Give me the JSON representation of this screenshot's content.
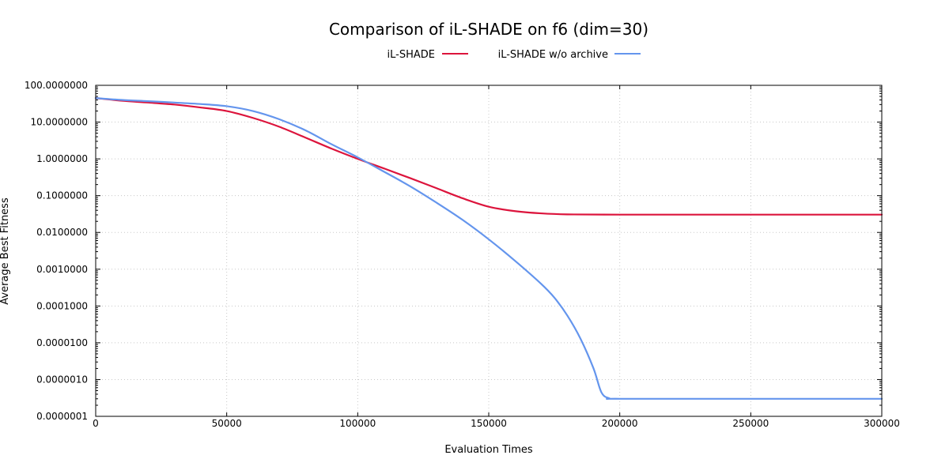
{
  "chart_data": {
    "type": "line",
    "title": "Comparison of iL-SHADE on f6 (dim=30)",
    "xlabel": "Evaluation Times",
    "ylabel": "Average Best Fitness",
    "xlim": [
      0,
      300000
    ],
    "ylim": [
      1e-07,
      100
    ],
    "y_scale": "log",
    "grid": true,
    "legend_position": "top-center",
    "x_ticks": [
      "0",
      "50000",
      "100000",
      "150000",
      "200000",
      "250000",
      "300000"
    ],
    "y_ticks": [
      "100.0000000",
      "10.0000000",
      "1.0000000",
      "0.1000000",
      "0.0100000",
      "0.0010000",
      "0.0001000",
      "0.0000100",
      "0.0000010",
      "0.0000001"
    ],
    "series": [
      {
        "name": "iL-SHADE",
        "color": "#dc143c",
        "points": [
          [
            0,
            45
          ],
          [
            10000,
            38
          ],
          [
            20000,
            34
          ],
          [
            30000,
            30
          ],
          [
            40000,
            25
          ],
          [
            50000,
            20
          ],
          [
            60000,
            13
          ],
          [
            70000,
            7.5
          ],
          [
            80000,
            3.8
          ],
          [
            90000,
            1.9
          ],
          [
            100000,
            1.0
          ],
          [
            110000,
            0.55
          ],
          [
            120000,
            0.3
          ],
          [
            130000,
            0.16
          ],
          [
            140000,
            0.085
          ],
          [
            150000,
            0.05
          ],
          [
            160000,
            0.038
          ],
          [
            170000,
            0.033
          ],
          [
            180000,
            0.031
          ],
          [
            200000,
            0.0305
          ],
          [
            250000,
            0.0305
          ],
          [
            300000,
            0.0305
          ]
        ]
      },
      {
        "name": "iL-SHADE w/o archive",
        "color": "#6495ed",
        "points": [
          [
            0,
            45
          ],
          [
            10000,
            40
          ],
          [
            20000,
            37
          ],
          [
            30000,
            34
          ],
          [
            40000,
            31
          ],
          [
            50000,
            27
          ],
          [
            60000,
            20
          ],
          [
            70000,
            12
          ],
          [
            80000,
            6
          ],
          [
            90000,
            2.5
          ],
          [
            100000,
            1.1
          ],
          [
            110000,
            0.45
          ],
          [
            120000,
            0.18
          ],
          [
            130000,
            0.065
          ],
          [
            140000,
            0.022
          ],
          [
            150000,
            0.0065
          ],
          [
            160000,
            0.0017
          ],
          [
            170000,
            0.0004
          ],
          [
            175000,
            0.00017
          ],
          [
            180000,
            5.5e-05
          ],
          [
            185000,
            1.3e-05
          ],
          [
            190000,
            2e-06
          ],
          [
            193000,
            4.5e-07
          ],
          [
            196000,
            3.1e-07
          ],
          [
            200000,
            3e-07
          ],
          [
            250000,
            3e-07
          ],
          [
            300000,
            3e-07
          ]
        ]
      }
    ]
  }
}
